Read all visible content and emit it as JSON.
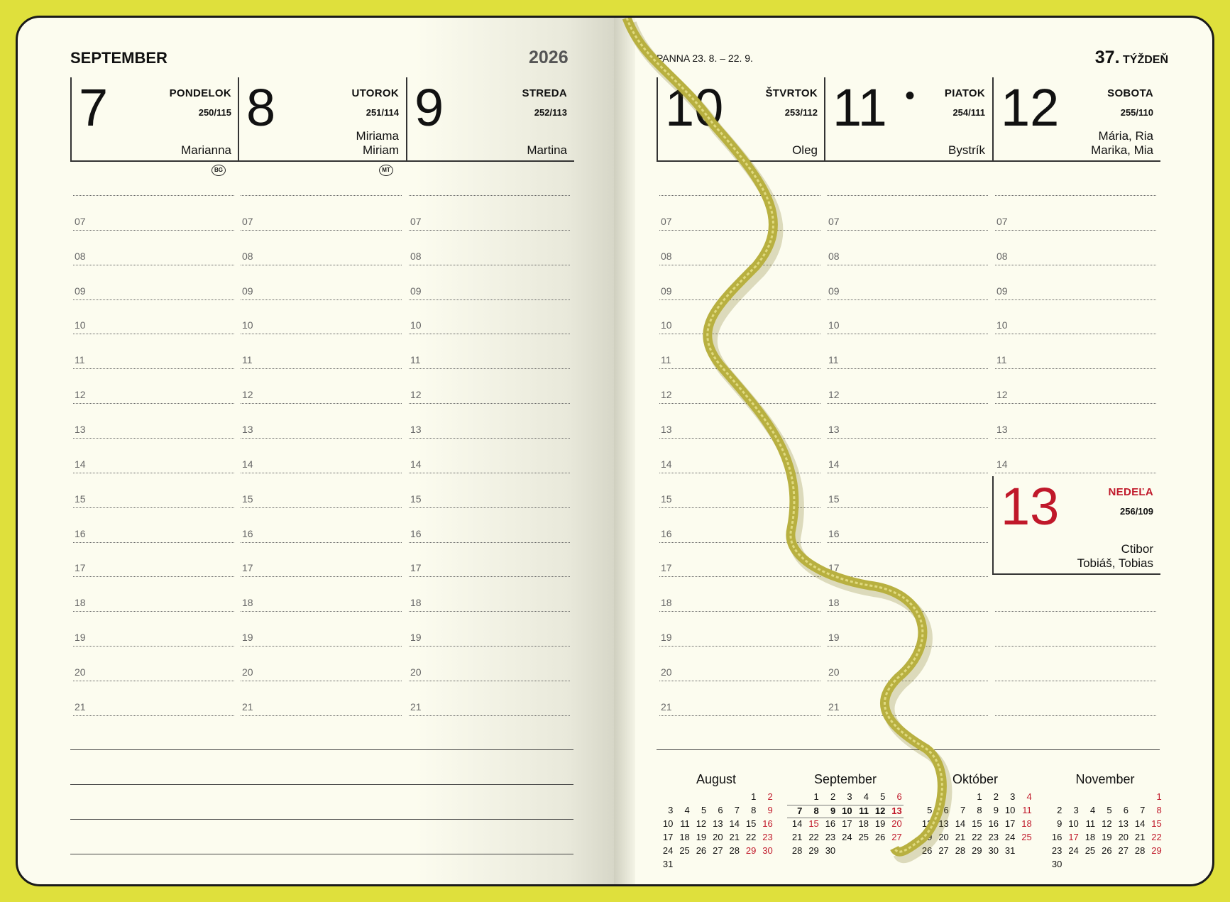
{
  "left": {
    "month": "SEPTEMBER",
    "year": "2026",
    "days": [
      {
        "num": "7",
        "name": "PONDELOK",
        "ord": "250/115",
        "names": [
          "Marianna"
        ],
        "badge": "BG"
      },
      {
        "num": "8",
        "name": "UTOROK",
        "ord": "251/114",
        "names": [
          "Miriama",
          "Miriam"
        ],
        "badge": "MT"
      },
      {
        "num": "9",
        "name": "STREDA",
        "ord": "252/113",
        "names": [
          "Martina"
        ]
      }
    ]
  },
  "right": {
    "zodiac": "PANNA 23. 8. – 22. 9.",
    "week_num": "37.",
    "week_label": "TÝŽDEŇ",
    "holiday_dot": "•",
    "days": [
      {
        "num": "10",
        "name": "ŠTVRTOK",
        "ord": "253/112",
        "names": [
          "Oleg"
        ]
      },
      {
        "num": "11",
        "name": "PIATOK",
        "ord": "254/111",
        "names": [
          "Bystrík"
        ]
      },
      {
        "num": "12",
        "name": "SOBOTA",
        "ord": "255/110",
        "names": [
          "Mária, Ria",
          "Marika, Mia"
        ]
      }
    ],
    "sunday": {
      "num": "13",
      "name": "NEDEĽA",
      "ord": "256/109",
      "names": [
        "Ctibor",
        "Tobiáš, Tobias"
      ]
    }
  },
  "hours": [
    "07",
    "08",
    "09",
    "10",
    "11",
    "12",
    "13",
    "14",
    "15",
    "16",
    "17",
    "18",
    "19",
    "20",
    "21"
  ],
  "colors": {
    "cover": "#dfe03c",
    "paper": "#fcfcef",
    "red": "#c0182a",
    "ribbon": "#b8b040"
  },
  "mini_calendars": [
    {
      "title": "August",
      "weeks": [
        [
          "",
          "",
          "",
          "",
          "",
          1,
          2
        ],
        [
          3,
          4,
          5,
          6,
          7,
          8,
          9
        ],
        [
          10,
          11,
          12,
          13,
          14,
          15,
          16
        ],
        [
          17,
          18,
          19,
          20,
          21,
          22,
          23
        ],
        [
          24,
          25,
          26,
          27,
          28,
          29,
          30
        ],
        [
          31
        ]
      ],
      "red": [
        29
      ]
    },
    {
      "title": "September",
      "weeks": [
        [
          "",
          1,
          2,
          3,
          4,
          5,
          6
        ],
        [
          7,
          8,
          9,
          10,
          11,
          12,
          13
        ],
        [
          14,
          15,
          16,
          17,
          18,
          19,
          20
        ],
        [
          21,
          22,
          23,
          24,
          25,
          26,
          27
        ],
        [
          28,
          29,
          30
        ]
      ],
      "red": [
        15
      ],
      "current_week": 1
    },
    {
      "title": "Október",
      "weeks": [
        [
          "",
          "",
          "",
          1,
          2,
          3,
          4
        ],
        [
          5,
          6,
          7,
          8,
          9,
          10,
          11
        ],
        [
          12,
          13,
          14,
          15,
          16,
          17,
          18
        ],
        [
          19,
          20,
          21,
          22,
          23,
          24,
          25
        ],
        [
          26,
          27,
          28,
          29,
          30,
          31
        ]
      ],
      "red": []
    },
    {
      "title": "November",
      "weeks": [
        [
          "",
          "",
          "",
          "",
          "",
          "",
          1
        ],
        [
          2,
          3,
          4,
          5,
          6,
          7,
          8
        ],
        [
          9,
          10,
          11,
          12,
          13,
          14,
          15
        ],
        [
          16,
          17,
          18,
          19,
          20,
          21,
          22
        ],
        [
          23,
          24,
          25,
          26,
          27,
          28,
          29
        ],
        [
          30
        ]
      ],
      "red": [
        17
      ]
    }
  ]
}
